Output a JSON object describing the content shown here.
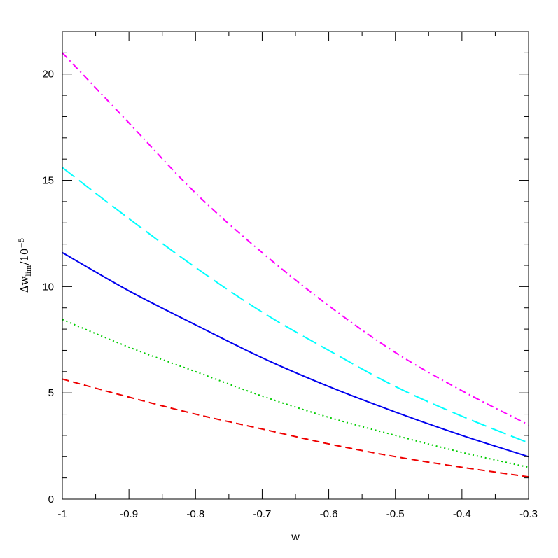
{
  "chart_data": {
    "type": "line",
    "title": "",
    "xlabel": "w",
    "ylabel": {
      "prefix": "Δw",
      "subscript": "lim",
      "middle": "/10",
      "superscript": "−5"
    },
    "xlim": [
      -1,
      -0.3
    ],
    "ylim": [
      0,
      22
    ],
    "xticks": [
      -1,
      -0.9,
      -0.8,
      -0.7,
      -0.6,
      -0.5,
      -0.4,
      -0.3
    ],
    "xtick_labels": [
      "-1",
      "-0.9",
      "-0.8",
      "-0.7",
      "-0.6",
      "-0.5",
      "-0.4",
      "-0.3"
    ],
    "yticks": [
      0,
      5,
      10,
      15,
      20
    ],
    "ytick_labels": [
      "0",
      "5",
      "10",
      "15",
      "20"
    ],
    "x": [
      -1,
      -0.9,
      -0.8,
      -0.7,
      -0.6,
      -0.5,
      -0.4,
      -0.3
    ],
    "legend": "none",
    "grid": false,
    "series": [
      {
        "color": "#ff00ff",
        "dash": "dash-dot",
        "values": [
          21.0,
          17.7,
          14.4,
          11.6,
          9.1,
          6.9,
          5.1,
          3.5
        ]
      },
      {
        "color": "#00ffff",
        "dash": "long-dash",
        "values": [
          15.6,
          13.2,
          10.9,
          8.8,
          7.0,
          5.3,
          3.9,
          2.65
        ]
      },
      {
        "color": "#0000ee",
        "dash": "solid",
        "values": [
          11.6,
          9.8,
          8.2,
          6.65,
          5.3,
          4.1,
          3.0,
          2.0
        ]
      },
      {
        "color": "#00cc00",
        "dash": "dotted",
        "values": [
          8.45,
          7.15,
          6.0,
          4.85,
          3.85,
          3.0,
          2.2,
          1.5
        ]
      },
      {
        "color": "#ee0000",
        "dash": "short-dash",
        "values": [
          5.65,
          4.8,
          4.0,
          3.3,
          2.6,
          2.0,
          1.5,
          1.05
        ]
      }
    ]
  }
}
